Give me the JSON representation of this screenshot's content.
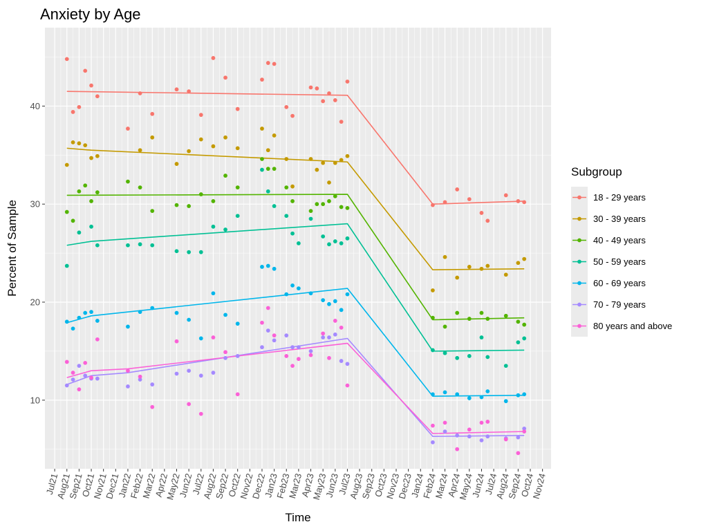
{
  "chart_data": {
    "type": "scatter",
    "title": "Anxiety by Age",
    "xlabel": "Time",
    "ylabel": "Percent of Sample",
    "ylim": [
      3,
      48
    ],
    "yticks": [
      10,
      20,
      30,
      40
    ],
    "x_ticks": [
      "Jul21",
      "Aug21",
      "Sep21",
      "Oct21",
      "Nov21",
      "Dec21",
      "Jan22",
      "Feb22",
      "Mar22",
      "Apr22",
      "May22",
      "Jun22",
      "Jul22",
      "Aug22",
      "Sep22",
      "Oct22",
      "Nov22",
      "Dec22",
      "Jan23",
      "Feb23",
      "Mar23",
      "Apr23",
      "May23",
      "Jun23",
      "Jul23",
      "Aug23",
      "Sep23",
      "Oct23",
      "Nov23",
      "Dec23",
      "Jan24",
      "Feb24",
      "Mar24",
      "Apr24",
      "May24",
      "Jun24",
      "Jul24",
      "Aug24",
      "Sep24",
      "Oct24",
      "Nov24"
    ],
    "xlim_months": [
      -0.8,
      40.7
    ],
    "grid": true,
    "legend": {
      "title": "Subgroup",
      "position": "right"
    },
    "series": [
      {
        "name": "18 - 29 years",
        "color": "#F8766D",
        "points": [
          [
            1,
            44.8
          ],
          [
            1.5,
            39.4
          ],
          [
            2,
            39.9
          ],
          [
            2.5,
            43.6
          ],
          [
            3,
            42.1
          ],
          [
            3.5,
            41.0
          ],
          [
            6,
            37.7
          ],
          [
            7,
            41.3
          ],
          [
            8,
            39.2
          ],
          [
            10,
            41.7
          ],
          [
            11,
            41.5
          ],
          [
            12,
            39.1
          ],
          [
            13,
            44.9
          ],
          [
            14,
            42.9
          ],
          [
            15,
            39.7
          ],
          [
            17,
            42.7
          ],
          [
            17.5,
            44.4
          ],
          [
            18,
            44.3
          ],
          [
            19,
            39.9
          ],
          [
            19.5,
            39.0
          ],
          [
            21,
            41.9
          ],
          [
            21.5,
            41.8
          ],
          [
            22,
            40.5
          ],
          [
            22.5,
            41.3
          ],
          [
            23,
            40.6
          ],
          [
            23.5,
            38.4
          ],
          [
            24,
            42.5
          ],
          [
            31,
            29.9
          ],
          [
            32,
            30.2
          ],
          [
            33,
            31.5
          ],
          [
            34,
            30.5
          ],
          [
            35,
            29.1
          ],
          [
            35.5,
            28.3
          ],
          [
            37,
            30.9
          ],
          [
            38,
            30.3
          ],
          [
            38.5,
            30.2
          ]
        ],
        "fit": [
          [
            1,
            41.5
          ],
          [
            24,
            41.1
          ],
          [
            31,
            30.0
          ],
          [
            38.5,
            30.3
          ]
        ]
      },
      {
        "name": "30 - 39 years",
        "color": "#C49A00",
        "points": [
          [
            1,
            34.0
          ],
          [
            1.5,
            36.3
          ],
          [
            2,
            36.2
          ],
          [
            2.5,
            36.0
          ],
          [
            3,
            34.7
          ],
          [
            3.5,
            34.9
          ],
          [
            7,
            35.5
          ],
          [
            8,
            36.8
          ],
          [
            10,
            34.1
          ],
          [
            11,
            35.4
          ],
          [
            12,
            36.6
          ],
          [
            13,
            35.9
          ],
          [
            14,
            36.8
          ],
          [
            15,
            35.7
          ],
          [
            17,
            37.7
          ],
          [
            17.5,
            35.5
          ],
          [
            18,
            37.0
          ],
          [
            19,
            34.6
          ],
          [
            19.5,
            31.8
          ],
          [
            21,
            34.6
          ],
          [
            21.5,
            33.5
          ],
          [
            22,
            34.2
          ],
          [
            22.5,
            32.2
          ],
          [
            23,
            34.2
          ],
          [
            23.5,
            34.5
          ],
          [
            24,
            34.9
          ],
          [
            31,
            21.2
          ],
          [
            32,
            24.6
          ],
          [
            33,
            22.5
          ],
          [
            34,
            23.6
          ],
          [
            35,
            23.4
          ],
          [
            35.5,
            23.7
          ],
          [
            37,
            22.8
          ],
          [
            38,
            24.0
          ],
          [
            38.5,
            24.4
          ]
        ],
        "fit": [
          [
            1,
            35.7
          ],
          [
            3,
            35.5
          ],
          [
            24,
            34.3
          ],
          [
            31,
            23.3
          ],
          [
            38.5,
            23.4
          ]
        ]
      },
      {
        "name": "40 - 49 years",
        "color": "#53B400",
        "points": [
          [
            1,
            29.2
          ],
          [
            1.5,
            28.3
          ],
          [
            2,
            31.3
          ],
          [
            2.5,
            31.9
          ],
          [
            3,
            30.3
          ],
          [
            3.5,
            31.2
          ],
          [
            6,
            32.3
          ],
          [
            7,
            31.7
          ],
          [
            8,
            29.3
          ],
          [
            10,
            29.9
          ],
          [
            11,
            29.8
          ],
          [
            12,
            31.0
          ],
          [
            13,
            30.3
          ],
          [
            14,
            32.9
          ],
          [
            15,
            31.7
          ],
          [
            17,
            34.6
          ],
          [
            17.5,
            33.6
          ],
          [
            18,
            33.6
          ],
          [
            19,
            31.7
          ],
          [
            19.5,
            30.3
          ],
          [
            21,
            29.3
          ],
          [
            21.5,
            30.0
          ],
          [
            22,
            30.0
          ],
          [
            22.5,
            30.3
          ],
          [
            23,
            30.8
          ],
          [
            23.5,
            29.7
          ],
          [
            24,
            29.6
          ],
          [
            31,
            18.4
          ],
          [
            32,
            17.5
          ],
          [
            33,
            18.9
          ],
          [
            34,
            18.3
          ],
          [
            35,
            18.9
          ],
          [
            35.5,
            18.3
          ],
          [
            37,
            18.6
          ],
          [
            38,
            18.0
          ],
          [
            38.5,
            17.7
          ]
        ],
        "fit": [
          [
            1,
            30.9
          ],
          [
            24,
            31.0
          ],
          [
            31,
            18.2
          ],
          [
            38.5,
            18.4
          ]
        ]
      },
      {
        "name": "50 - 59 years",
        "color": "#00C094",
        "points": [
          [
            1,
            23.7
          ],
          [
            2,
            27.1
          ],
          [
            3,
            27.7
          ],
          [
            3.5,
            25.8
          ],
          [
            6,
            25.8
          ],
          [
            7,
            25.9
          ],
          [
            8,
            25.8
          ],
          [
            10,
            25.2
          ],
          [
            11,
            25.1
          ],
          [
            12,
            25.1
          ],
          [
            13,
            27.7
          ],
          [
            14,
            27.4
          ],
          [
            15,
            28.8
          ],
          [
            17,
            33.5
          ],
          [
            17.5,
            31.3
          ],
          [
            18,
            29.8
          ],
          [
            19,
            28.8
          ],
          [
            19.5,
            27.0
          ],
          [
            20,
            26.0
          ],
          [
            21,
            28.5
          ],
          [
            22,
            26.7
          ],
          [
            22.5,
            25.9
          ],
          [
            23,
            26.2
          ],
          [
            23.5,
            26.0
          ],
          [
            24,
            26.5
          ],
          [
            31,
            15.1
          ],
          [
            32,
            14.8
          ],
          [
            33,
            14.3
          ],
          [
            34,
            14.5
          ],
          [
            35,
            16.4
          ],
          [
            35.5,
            14.4
          ],
          [
            37,
            13.5
          ],
          [
            38,
            15.9
          ],
          [
            38.5,
            16.3
          ]
        ],
        "fit": [
          [
            1,
            25.8
          ],
          [
            3,
            26.2
          ],
          [
            24,
            28.0
          ],
          [
            31,
            15.0
          ],
          [
            38.5,
            15.1
          ]
        ]
      },
      {
        "name": "60 - 69 years",
        "color": "#00B6EB",
        "points": [
          [
            1,
            18.0
          ],
          [
            1.5,
            17.3
          ],
          [
            2,
            18.4
          ],
          [
            2.5,
            18.9
          ],
          [
            3,
            19.0
          ],
          [
            3.5,
            18.1
          ],
          [
            6,
            17.5
          ],
          [
            7,
            19.0
          ],
          [
            8,
            19.4
          ],
          [
            10,
            18.9
          ],
          [
            11,
            18.2
          ],
          [
            12,
            16.3
          ],
          [
            13,
            20.9
          ],
          [
            14,
            18.7
          ],
          [
            15,
            17.8
          ],
          [
            17,
            23.6
          ],
          [
            17.5,
            23.7
          ],
          [
            18,
            23.4
          ],
          [
            19,
            20.8
          ],
          [
            19.5,
            21.7
          ],
          [
            20,
            21.4
          ],
          [
            21,
            20.9
          ],
          [
            22,
            20.2
          ],
          [
            22.5,
            19.8
          ],
          [
            23,
            20.1
          ],
          [
            23.5,
            19.2
          ],
          [
            24,
            20.8
          ],
          [
            31,
            10.6
          ],
          [
            32,
            10.8
          ],
          [
            33,
            10.6
          ],
          [
            34,
            10.2
          ],
          [
            35,
            10.3
          ],
          [
            35.5,
            10.9
          ],
          [
            37,
            9.9
          ],
          [
            38,
            10.5
          ],
          [
            38.5,
            10.6
          ]
        ],
        "fit": [
          [
            1,
            17.9
          ],
          [
            3,
            18.6
          ],
          [
            24,
            21.4
          ],
          [
            31,
            10.4
          ],
          [
            38.5,
            10.5
          ]
        ]
      },
      {
        "name": "70 - 79 years",
        "color": "#A58AFF",
        "points": [
          [
            1,
            11.5
          ],
          [
            1.5,
            12.1
          ],
          [
            2,
            13.5
          ],
          [
            2.5,
            12.5
          ],
          [
            3,
            12.2
          ],
          [
            3.5,
            12.2
          ],
          [
            6,
            11.4
          ],
          [
            7,
            12.1
          ],
          [
            8,
            11.6
          ],
          [
            10,
            12.7
          ],
          [
            11,
            13.0
          ],
          [
            12,
            12.5
          ],
          [
            13,
            12.8
          ],
          [
            14,
            14.3
          ],
          [
            15,
            14.5
          ],
          [
            17,
            15.4
          ],
          [
            17.5,
            17.1
          ],
          [
            18,
            16.1
          ],
          [
            19,
            16.6
          ],
          [
            19.5,
            15.4
          ],
          [
            20,
            15.4
          ],
          [
            21,
            15.0
          ],
          [
            22,
            16.4
          ],
          [
            22.5,
            16.4
          ],
          [
            23,
            16.7
          ],
          [
            23.5,
            14.0
          ],
          [
            24,
            13.7
          ],
          [
            31,
            5.7
          ],
          [
            32,
            6.8
          ],
          [
            33,
            6.4
          ],
          [
            34,
            6.3
          ],
          [
            35,
            5.9
          ],
          [
            35.5,
            6.3
          ],
          [
            37,
            6.1
          ],
          [
            38,
            6.2
          ],
          [
            38.5,
            7.1
          ]
        ],
        "fit": [
          [
            1,
            11.6
          ],
          [
            3,
            12.5
          ],
          [
            6,
            12.8
          ],
          [
            24,
            16.3
          ],
          [
            31,
            6.3
          ],
          [
            38.5,
            6.4
          ]
        ]
      },
      {
        "name": "80 years and above",
        "color": "#FB61D7",
        "points": [
          [
            1,
            13.9
          ],
          [
            1.5,
            12.8
          ],
          [
            2,
            11.1
          ],
          [
            2.5,
            13.8
          ],
          [
            3,
            12.3
          ],
          [
            3.5,
            16.2
          ],
          [
            6,
            13.0
          ],
          [
            7,
            12.4
          ],
          [
            8,
            9.3
          ],
          [
            10,
            16.0
          ],
          [
            11,
            9.6
          ],
          [
            12,
            8.6
          ],
          [
            13,
            16.4
          ],
          [
            14,
            14.9
          ],
          [
            15,
            10.6
          ],
          [
            17,
            17.9
          ],
          [
            17.5,
            19.4
          ],
          [
            18,
            16.6
          ],
          [
            19,
            14.5
          ],
          [
            19.5,
            13.5
          ],
          [
            20,
            14.2
          ],
          [
            21,
            14.6
          ],
          [
            22,
            16.8
          ],
          [
            22.5,
            14.3
          ],
          [
            23,
            18.1
          ],
          [
            23.5,
            17.4
          ],
          [
            24,
            11.5
          ],
          [
            31,
            7.4
          ],
          [
            32,
            7.7
          ],
          [
            33,
            5.0
          ],
          [
            34,
            7.0
          ],
          [
            35,
            7.7
          ],
          [
            35.5,
            7.8
          ],
          [
            37,
            6.0
          ],
          [
            38,
            4.6
          ],
          [
            38.5,
            6.8
          ]
        ],
        "fit": [
          [
            1,
            12.3
          ],
          [
            3,
            13.0
          ],
          [
            6,
            13.2
          ],
          [
            24,
            15.8
          ],
          [
            31,
            6.6
          ],
          [
            38.5,
            6.8
          ]
        ]
      }
    ]
  }
}
